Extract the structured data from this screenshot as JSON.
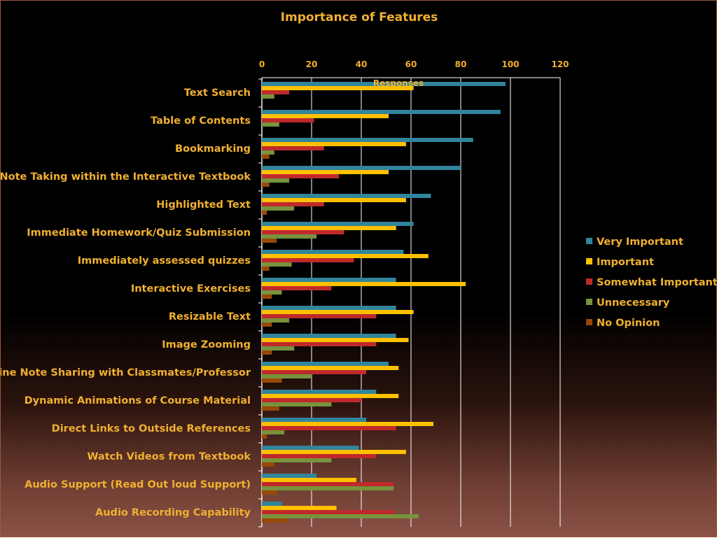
{
  "chart_data": {
    "type": "bar",
    "orientation": "horizontal",
    "title": "Importance of Features",
    "xlabel": "Responses",
    "ylabel": "",
    "xlim": [
      0,
      120
    ],
    "xticks": [
      "0",
      "20",
      "40",
      "60",
      "80",
      "100",
      "120"
    ],
    "grid": true,
    "legend_position": "right",
    "categories": [
      "Text Search",
      "Table of Contents",
      "Bookmarking",
      "Note Taking within the Interactive Textbook",
      "Highlighted Text",
      "Immediate Homework/Quiz Submission",
      "Immediately assessed quizzes",
      "Interactive Exercises",
      "Resizable Text",
      "Image Zooming",
      "Online Note Sharing with Classmates/Professor",
      "Dynamic Animations of Course Material",
      "Direct Links to Outside References",
      "Watch Videos from Textbook",
      "Audio Support (Read Out loud Support)",
      "Audio Recording Capability"
    ],
    "series": [
      {
        "name": "Very Important",
        "color": "#31859c",
        "values": [
          98,
          96,
          85,
          80,
          68,
          61,
          57,
          54,
          54,
          54,
          51,
          46,
          42,
          39,
          22,
          8
        ]
      },
      {
        "name": "Important",
        "color": "#ffc000",
        "values": [
          61,
          51,
          58,
          51,
          58,
          54,
          67,
          82,
          61,
          59,
          55,
          55,
          69,
          58,
          38,
          30
        ]
      },
      {
        "name": "Somewhat Important",
        "color": "#c0292b",
        "values": [
          11,
          21,
          25,
          31,
          25,
          33,
          37,
          28,
          46,
          46,
          42,
          40,
          54,
          46,
          53,
          53
        ]
      },
      {
        "name": "Unnecessary",
        "color": "#77933c",
        "values": [
          5,
          7,
          5,
          11,
          13,
          22,
          12,
          8,
          11,
          13,
          20,
          28,
          9,
          28,
          53,
          63
        ]
      },
      {
        "name": "No Opinion",
        "color": "#984807",
        "values": [
          0,
          0,
          3,
          3,
          2,
          6,
          3,
          4,
          4,
          4,
          8,
          7,
          2,
          5,
          6,
          10
        ]
      }
    ]
  },
  "colors": {
    "text": "#f0b030",
    "grid": "#ffffff",
    "frame_border": "#9c5a3c"
  }
}
